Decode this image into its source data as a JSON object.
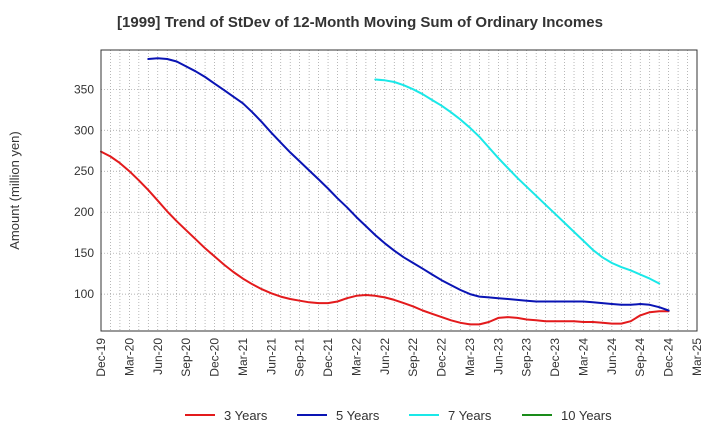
{
  "chart_data": {
    "type": "line",
    "title": "[1999]  Trend of StDev of 12-Month Moving Sum of Ordinary Incomes",
    "ylabel": "Amount (million yen)",
    "xlabel": "",
    "ylim": [
      55,
      398
    ],
    "yticks": [
      100,
      150,
      200,
      250,
      300,
      350
    ],
    "xlim": [
      "2019-12",
      "2025-03"
    ],
    "x_tick_labels": [
      "Dec-19",
      "Mar-20",
      "Jun-20",
      "Sep-20",
      "Dec-20",
      "Mar-21",
      "Jun-21",
      "Sep-21",
      "Dec-21",
      "Mar-22",
      "Jun-22",
      "Sep-22",
      "Dec-22",
      "Mar-23",
      "Jun-23",
      "Sep-23",
      "Dec-23",
      "Mar-24",
      "Jun-24",
      "Sep-24",
      "Dec-24",
      "Mar-25"
    ],
    "grid": "dotted",
    "legend_position": "bottom",
    "series": [
      {
        "name": "3 Years",
        "color": "#e31a1c",
        "points": [
          [
            "2019-12",
            274
          ],
          [
            "2020-01",
            268
          ],
          [
            "2020-02",
            260
          ],
          [
            "2020-03",
            250
          ],
          [
            "2020-04",
            239
          ],
          [
            "2020-05",
            227
          ],
          [
            "2020-06",
            214
          ],
          [
            "2020-07",
            201
          ],
          [
            "2020-08",
            189
          ],
          [
            "2020-09",
            178
          ],
          [
            "2020-10",
            167
          ],
          [
            "2020-11",
            156
          ],
          [
            "2020-12",
            146
          ],
          [
            "2021-01",
            136
          ],
          [
            "2021-02",
            127
          ],
          [
            "2021-03",
            119
          ],
          [
            "2021-04",
            112
          ],
          [
            "2021-05",
            106
          ],
          [
            "2021-06",
            101
          ],
          [
            "2021-07",
            97
          ],
          [
            "2021-08",
            94
          ],
          [
            "2021-09",
            92
          ],
          [
            "2021-10",
            90
          ],
          [
            "2021-11",
            89
          ],
          [
            "2021-12",
            89
          ],
          [
            "2022-01",
            91
          ],
          [
            "2022-02",
            95
          ],
          [
            "2022-03",
            98
          ],
          [
            "2022-04",
            99
          ],
          [
            "2022-05",
            98
          ],
          [
            "2022-06",
            96
          ],
          [
            "2022-07",
            93
          ],
          [
            "2022-08",
            89
          ],
          [
            "2022-09",
            85
          ],
          [
            "2022-10",
            80
          ],
          [
            "2022-11",
            76
          ],
          [
            "2022-12",
            72
          ],
          [
            "2023-01",
            68
          ],
          [
            "2023-02",
            65
          ],
          [
            "2023-03",
            63
          ],
          [
            "2023-04",
            63
          ],
          [
            "2023-05",
            66
          ],
          [
            "2023-06",
            71
          ],
          [
            "2023-07",
            72
          ],
          [
            "2023-08",
            71
          ],
          [
            "2023-09",
            69
          ],
          [
            "2023-10",
            68
          ],
          [
            "2023-11",
            67
          ],
          [
            "2023-12",
            67
          ],
          [
            "2024-01",
            67
          ],
          [
            "2024-02",
            67
          ],
          [
            "2024-03",
            66
          ],
          [
            "2024-04",
            66
          ],
          [
            "2024-05",
            65
          ],
          [
            "2024-06",
            64
          ],
          [
            "2024-07",
            64
          ],
          [
            "2024-08",
            67
          ],
          [
            "2024-09",
            74
          ],
          [
            "2024-10",
            78
          ],
          [
            "2024-11",
            79
          ],
          [
            "2024-12",
            79
          ]
        ]
      },
      {
        "name": "5 Years",
        "color": "#0a14b4",
        "points": [
          [
            "2020-05",
            387
          ],
          [
            "2020-06",
            388
          ],
          [
            "2020-07",
            387
          ],
          [
            "2020-08",
            384
          ],
          [
            "2020-09",
            378
          ],
          [
            "2020-10",
            372
          ],
          [
            "2020-11",
            365
          ],
          [
            "2020-12",
            357
          ],
          [
            "2021-01",
            349
          ],
          [
            "2021-02",
            341
          ],
          [
            "2021-03",
            333
          ],
          [
            "2021-04",
            322
          ],
          [
            "2021-05",
            310
          ],
          [
            "2021-06",
            297
          ],
          [
            "2021-07",
            285
          ],
          [
            "2021-08",
            273
          ],
          [
            "2021-09",
            262
          ],
          [
            "2021-10",
            251
          ],
          [
            "2021-11",
            240
          ],
          [
            "2021-12",
            229
          ],
          [
            "2022-01",
            217
          ],
          [
            "2022-02",
            206
          ],
          [
            "2022-03",
            194
          ],
          [
            "2022-04",
            183
          ],
          [
            "2022-05",
            172
          ],
          [
            "2022-06",
            162
          ],
          [
            "2022-07",
            153
          ],
          [
            "2022-08",
            145
          ],
          [
            "2022-09",
            138
          ],
          [
            "2022-10",
            131
          ],
          [
            "2022-11",
            124
          ],
          [
            "2022-12",
            117
          ],
          [
            "2023-01",
            111
          ],
          [
            "2023-02",
            105
          ],
          [
            "2023-03",
            100
          ],
          [
            "2023-04",
            97
          ],
          [
            "2023-05",
            96
          ],
          [
            "2023-06",
            95
          ],
          [
            "2023-07",
            94
          ],
          [
            "2023-08",
            93
          ],
          [
            "2023-09",
            92
          ],
          [
            "2023-10",
            91
          ],
          [
            "2023-11",
            91
          ],
          [
            "2023-12",
            91
          ],
          [
            "2024-01",
            91
          ],
          [
            "2024-02",
            91
          ],
          [
            "2024-03",
            91
          ],
          [
            "2024-04",
            90
          ],
          [
            "2024-05",
            89
          ],
          [
            "2024-06",
            88
          ],
          [
            "2024-07",
            87
          ],
          [
            "2024-08",
            87
          ],
          [
            "2024-09",
            88
          ],
          [
            "2024-10",
            87
          ],
          [
            "2024-11",
            84
          ],
          [
            "2024-12",
            80
          ]
        ]
      },
      {
        "name": "7 Years",
        "color": "#1ae8e8",
        "points": [
          [
            "2022-05",
            362
          ],
          [
            "2022-06",
            361
          ],
          [
            "2022-07",
            359
          ],
          [
            "2022-08",
            355
          ],
          [
            "2022-09",
            350
          ],
          [
            "2022-10",
            344
          ],
          [
            "2022-11",
            337
          ],
          [
            "2022-12",
            330
          ],
          [
            "2023-01",
            322
          ],
          [
            "2023-02",
            313
          ],
          [
            "2023-03",
            303
          ],
          [
            "2023-04",
            292
          ],
          [
            "2023-05",
            279
          ],
          [
            "2023-06",
            266
          ],
          [
            "2023-07",
            254
          ],
          [
            "2023-08",
            242
          ],
          [
            "2023-09",
            231
          ],
          [
            "2023-10",
            220
          ],
          [
            "2023-11",
            209
          ],
          [
            "2023-12",
            198
          ],
          [
            "2024-01",
            187
          ],
          [
            "2024-02",
            176
          ],
          [
            "2024-03",
            165
          ],
          [
            "2024-04",
            154
          ],
          [
            "2024-05",
            145
          ],
          [
            "2024-06",
            138
          ],
          [
            "2024-07",
            133
          ],
          [
            "2024-08",
            129
          ],
          [
            "2024-09",
            124
          ],
          [
            "2024-10",
            119
          ],
          [
            "2024-11",
            113
          ]
        ]
      },
      {
        "name": "10 Years",
        "color": "#1a8c1a",
        "points": []
      }
    ]
  }
}
